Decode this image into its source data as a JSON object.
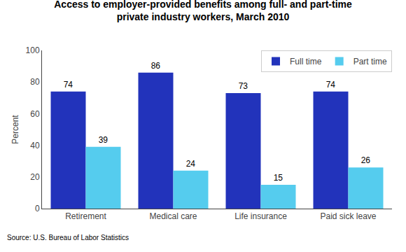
{
  "chart_data": {
    "type": "bar",
    "title": "Access to employer-provided benefits among full- and part-time\nprivate industry workers, March 2010",
    "categories": [
      "Retirement",
      "Medical care",
      "Life insurance",
      "Paid sick leave"
    ],
    "series": [
      {
        "name": "Full time",
        "color": "#2233BB",
        "values": [
          74,
          86,
          73,
          74
        ]
      },
      {
        "name": "Part time",
        "color": "#55CCEE",
        "values": [
          39,
          24,
          15,
          26
        ]
      }
    ],
    "ylabel": "Percent",
    "ylim": [
      0,
      100
    ],
    "yticks": [
      0,
      20,
      40,
      60,
      80,
      100
    ],
    "legend": "upper right",
    "data_labels": true,
    "grid": false,
    "annotations": [
      "Source: U.S. Bureau of Labor Statistics"
    ]
  }
}
